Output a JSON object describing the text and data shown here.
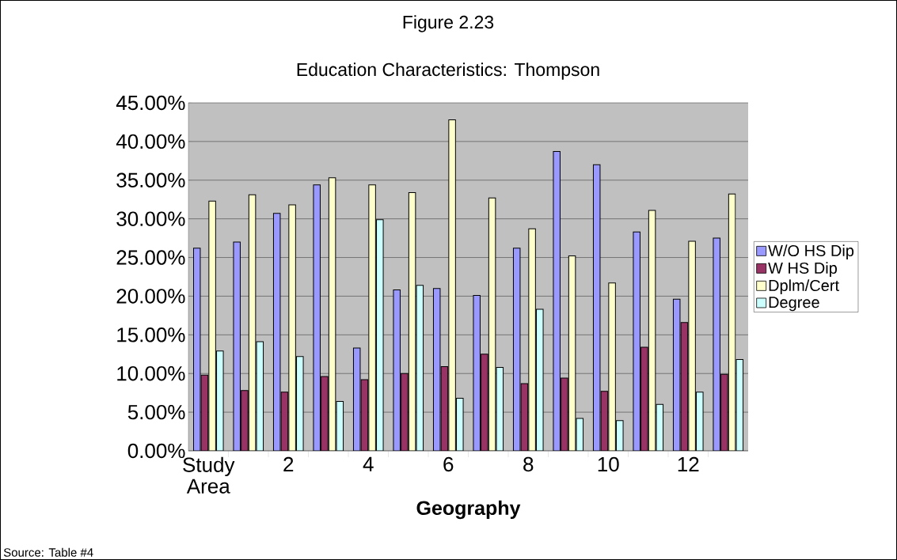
{
  "chart_data": {
    "type": "bar",
    "title": "Figure 2.23",
    "subtitle": "Education Characteristics: Thompson",
    "xlabel": "Geography",
    "annotations": [
      "Source: Table #4"
    ],
    "categories": [
      "Study Area",
      null,
      "2",
      null,
      "4",
      null,
      "6",
      null,
      "8",
      null,
      "10",
      null,
      "12",
      null
    ],
    "series": [
      {
        "name": "W/O HS Dip",
        "color": "#9999ff",
        "values": [
          26.2,
          27.0,
          30.7,
          34.4,
          13.3,
          20.8,
          21.0,
          20.1,
          26.2,
          38.7,
          37.0,
          28.3,
          19.6,
          27.5
        ]
      },
      {
        "name": "W HS Dip",
        "color": "#993366",
        "values": [
          9.8,
          7.8,
          7.6,
          9.6,
          9.2,
          10.0,
          10.9,
          12.5,
          8.7,
          9.4,
          7.7,
          13.4,
          16.6,
          9.9
        ]
      },
      {
        "name": "Dplm/Cert",
        "color": "#ffffcc",
        "values": [
          32.3,
          33.1,
          31.8,
          35.3,
          34.4,
          33.4,
          42.8,
          32.7,
          28.7,
          25.2,
          21.7,
          31.1,
          27.1,
          33.2
        ]
      },
      {
        "name": "Degree",
        "color": "#ccffff",
        "values": [
          12.9,
          14.1,
          12.2,
          6.4,
          29.9,
          21.4,
          6.8,
          10.8,
          18.3,
          4.2,
          3.9,
          6.0,
          7.6,
          11.8
        ]
      }
    ],
    "ylim": [
      0,
      45
    ],
    "yticks": [
      {
        "value": 0,
        "label": "0.00%"
      },
      {
        "value": 5,
        "label": "5.00%"
      },
      {
        "value": 10,
        "label": "10.00%"
      },
      {
        "value": 15,
        "label": "15.00%"
      },
      {
        "value": 20,
        "label": "20.00%"
      },
      {
        "value": 25,
        "label": "25.00%"
      },
      {
        "value": 30,
        "label": "30.00%"
      },
      {
        "value": 35,
        "label": "35.00%"
      },
      {
        "value": 40,
        "label": "40.00%"
      },
      {
        "value": 45,
        "label": "45.00%"
      }
    ],
    "grid": "y",
    "legend": "right"
  }
}
